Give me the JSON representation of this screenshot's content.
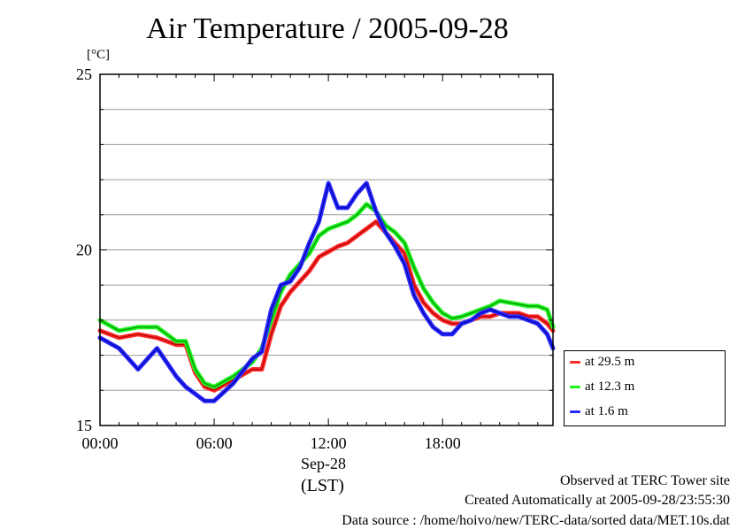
{
  "header": {
    "title": "Air Temperature / 2005-09-28",
    "unit": "[°C]"
  },
  "axis": {
    "date_label": "Sep-28",
    "tz_label": "(LST)"
  },
  "footer": {
    "line1": "Observed at TERC Tower site",
    "line2": "Created Automatically at 2005-09-28/23:55:30",
    "line3": "Data source : /home/hoivo/new/TERC-data/sorted data/MET.10s.dat"
  },
  "colors": {
    "red": "#ff2a2a",
    "green": "#1ff51f",
    "blue": "#2a2aff",
    "grid": "#9a9a9a"
  },
  "chart_data": {
    "type": "line",
    "title": "Air Temperature / 2005-09-28",
    "xlabel": "Sep-28 (LST)",
    "ylabel": "[°C]",
    "xlim": [
      0,
      23.8
    ],
    "ylim": [
      15,
      25
    ],
    "xticks": [
      0,
      6,
      12,
      18
    ],
    "xtick_labels": [
      "00:00",
      "06:00",
      "12:00",
      "18:00"
    ],
    "yticks": [
      15,
      20,
      25
    ],
    "ytick_labels": [
      "15",
      "20",
      "25"
    ],
    "grid": true,
    "legend_position": "bottom-right outside",
    "x": [
      0,
      1,
      2,
      3,
      4,
      4.5,
      5,
      5.5,
      6,
      7,
      8,
      8.5,
      9,
      9.5,
      10,
      10.5,
      11,
      11.5,
      12,
      12.5,
      13,
      13.5,
      14,
      14.5,
      15,
      15.5,
      16,
      16.5,
      17,
      17.5,
      18,
      18.5,
      19,
      19.5,
      20,
      20.5,
      21,
      21.5,
      22,
      22.5,
      23,
      23.5,
      23.8
    ],
    "series": [
      {
        "name": "at 29.5 m",
        "color": "red",
        "values": [
          17.7,
          17.5,
          17.6,
          17.5,
          17.3,
          17.3,
          16.5,
          16.1,
          16.0,
          16.3,
          16.6,
          16.6,
          17.6,
          18.4,
          18.8,
          19.1,
          19.4,
          19.8,
          19.95,
          20.1,
          20.2,
          20.4,
          20.6,
          20.8,
          20.5,
          20.2,
          19.9,
          19.0,
          18.5,
          18.2,
          18.0,
          17.9,
          17.9,
          18.0,
          18.1,
          18.1,
          18.2,
          18.2,
          18.2,
          18.1,
          18.1,
          17.9,
          17.7
        ]
      },
      {
        "name": "at 12.3 m",
        "color": "green",
        "values": [
          18.0,
          17.7,
          17.8,
          17.8,
          17.4,
          17.4,
          16.6,
          16.2,
          16.1,
          16.4,
          16.8,
          17.2,
          18.0,
          18.8,
          19.3,
          19.6,
          19.9,
          20.4,
          20.6,
          20.7,
          20.8,
          21.0,
          21.3,
          21.1,
          20.7,
          20.5,
          20.2,
          19.5,
          18.9,
          18.5,
          18.2,
          18.05,
          18.1,
          18.2,
          18.3,
          18.4,
          18.55,
          18.5,
          18.45,
          18.4,
          18.4,
          18.3,
          17.8
        ]
      },
      {
        "name": "at 1.6 m",
        "color": "blue",
        "values": [
          17.5,
          17.2,
          16.6,
          17.2,
          16.4,
          16.1,
          15.9,
          15.7,
          15.7,
          16.2,
          16.9,
          17.1,
          18.3,
          19.0,
          19.1,
          19.5,
          20.2,
          20.8,
          21.9,
          21.2,
          21.2,
          21.6,
          21.9,
          21.1,
          20.5,
          20.1,
          19.6,
          18.7,
          18.2,
          17.8,
          17.6,
          17.6,
          17.9,
          18.0,
          18.2,
          18.3,
          18.2,
          18.1,
          18.1,
          18.0,
          17.9,
          17.6,
          17.2
        ]
      }
    ]
  }
}
